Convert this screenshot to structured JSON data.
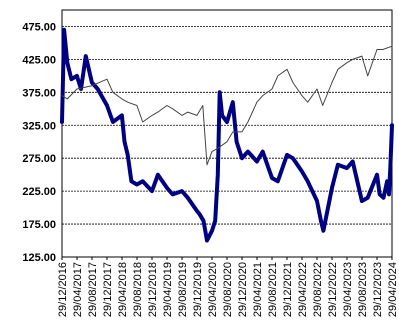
{
  "chart_data": {
    "type": "line",
    "title": "",
    "xlabel": "",
    "ylabel": "",
    "ylim": [
      125,
      500
    ],
    "y_ticks": [
      "475.00",
      "425.00",
      "375.00",
      "325.00",
      "275.00",
      "225.00",
      "175.00",
      "125.00"
    ],
    "y_tick_values": [
      475,
      425,
      375,
      325,
      275,
      225,
      175,
      125
    ],
    "x_ticks": [
      "29/12/2016",
      "29/04/2017",
      "29/08/2017",
      "29/12/2017",
      "29/04/2018",
      "29/08/2018",
      "29/12/2018",
      "29/04/2019",
      "29/08/2019",
      "29/12/2019",
      "29/04/2020",
      "29/08/2020",
      "29/12/2020",
      "29/04/2021",
      "29/08/2021",
      "29/12/2021",
      "29/04/2022",
      "29/08/2022",
      "29/12/2022",
      "29/04/2023",
      "29/08/2023",
      "29/12/2023",
      "29/04/2024"
    ],
    "grid": true,
    "legend": "none",
    "series": [
      {
        "color": "#000080",
        "line_width": 4,
        "x": [
          "2016-12-29",
          "2017-01-15",
          "2017-02-10",
          "2017-03-15",
          "2017-04-29",
          "2017-06-01",
          "2017-07-10",
          "2017-08-29",
          "2017-10-15",
          "2017-12-29",
          "2018-02-15",
          "2018-04-29",
          "2018-05-20",
          "2018-06-15",
          "2018-07-15",
          "2018-08-29",
          "2018-10-15",
          "2018-12-29",
          "2019-02-15",
          "2019-04-29",
          "2019-06-15",
          "2019-08-29",
          "2019-10-15",
          "2019-12-29",
          "2020-01-20",
          "2020-02-20",
          "2020-03-20",
          "2020-04-29",
          "2020-05-25",
          "2020-06-15",
          "2020-07-01",
          "2020-07-20",
          "2020-08-29",
          "2020-10-15",
          "2020-11-15",
          "2020-12-29",
          "2021-02-15",
          "2021-04-29",
          "2021-06-15",
          "2021-08-29",
          "2021-10-15",
          "2021-12-29",
          "2022-02-15",
          "2022-04-29",
          "2022-06-15",
          "2022-08-29",
          "2022-09-30",
          "2022-10-20",
          "2022-12-29",
          "2023-02-15",
          "2023-04-29",
          "2023-06-15",
          "2023-08-29",
          "2023-10-15",
          "2023-12-29",
          "2024-01-20",
          "2024-02-20",
          "2024-03-20",
          "2024-04-05",
          "2024-04-15",
          "2024-04-29"
        ],
        "y": [
          330,
          470,
          420,
          395,
          400,
          380,
          430,
          390,
          380,
          355,
          330,
          340,
          300,
          280,
          240,
          235,
          240,
          225,
          250,
          230,
          220,
          225,
          215,
          195,
          190,
          180,
          150,
          165,
          180,
          250,
          375,
          340,
          330,
          360,
          300,
          275,
          285,
          270,
          285,
          245,
          240,
          280,
          275,
          255,
          240,
          210,
          180,
          165,
          230,
          265,
          260,
          270,
          210,
          215,
          250,
          220,
          215,
          240,
          220,
          260,
          325
        ]
      },
      {
        "color": "#444444",
        "line_width": 1,
        "x": [
          "2016-12-29",
          "2017-02-10",
          "2017-04-29",
          "2017-08-29",
          "2017-12-29",
          "2018-02-15",
          "2018-04-29",
          "2018-06-15",
          "2018-08-29",
          "2018-10-15",
          "2018-12-29",
          "2019-02-15",
          "2019-04-29",
          "2019-06-15",
          "2019-08-29",
          "2019-10-15",
          "2019-12-29",
          "2020-02-15",
          "2020-03-20",
          "2020-04-29",
          "2020-06-15",
          "2020-08-29",
          "2020-10-15",
          "2020-12-29",
          "2021-02-15",
          "2021-04-29",
          "2021-06-15",
          "2021-08-29",
          "2021-10-15",
          "2021-12-29",
          "2022-02-15",
          "2022-04-29",
          "2022-06-15",
          "2022-08-29",
          "2022-10-15",
          "2022-12-29",
          "2023-02-15",
          "2023-04-29",
          "2023-06-15",
          "2023-08-29",
          "2023-10-15",
          "2023-12-29",
          "2024-02-15",
          "2024-04-29"
        ],
        "y": [
          370,
          365,
          380,
          385,
          395,
          375,
          365,
          360,
          355,
          330,
          340,
          345,
          355,
          350,
          340,
          345,
          340,
          355,
          265,
          285,
          290,
          300,
          315,
          315,
          330,
          360,
          370,
          380,
          400,
          410,
          390,
          370,
          360,
          380,
          355,
          390,
          410,
          420,
          425,
          430,
          400,
          440,
          440,
          445
        ]
      }
    ]
  }
}
